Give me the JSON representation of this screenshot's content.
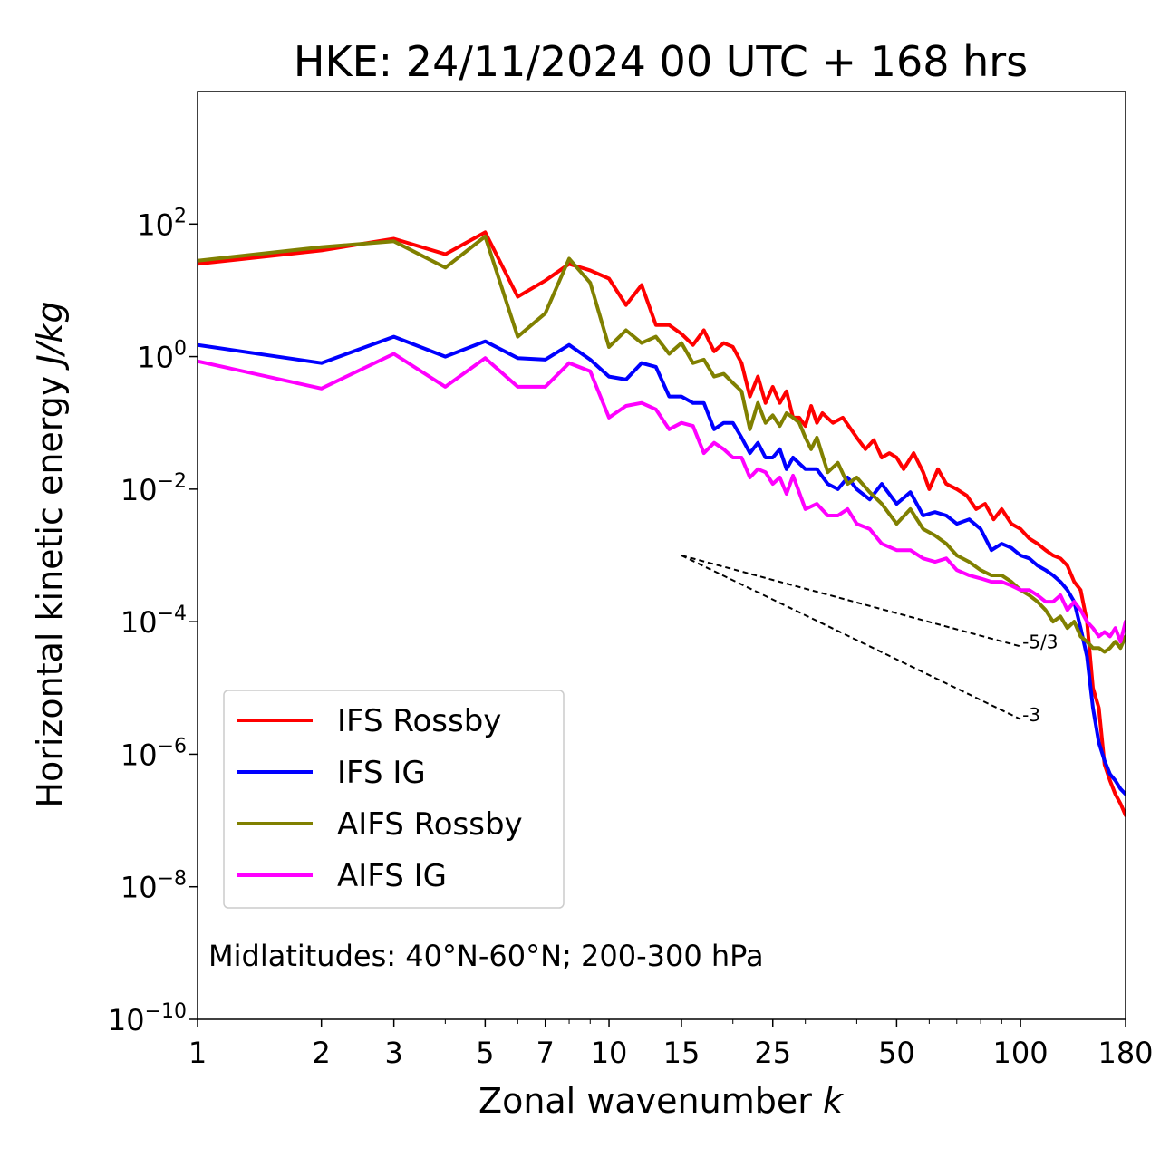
{
  "chart_data": {
    "type": "line",
    "title": "HKE: 24/11/2024 00 UTC + 168 hrs",
    "xlabel": "Zonal wavenumber",
    "xlabel_var": "k",
    "ylabel": "Horizontal kinetic energy",
    "ylabel_unit": "J/kg",
    "x_scale": "log",
    "y_scale": "log",
    "xlim": [
      1,
      180
    ],
    "ylim": [
      1e-10,
      10000.0
    ],
    "x_ticks": [
      1,
      2,
      3,
      5,
      7,
      10,
      15,
      25,
      50,
      100,
      180
    ],
    "y_ticks": [
      {
        "base": "10",
        "exp": "2",
        "value": 100
      },
      {
        "base": "10",
        "exp": "0",
        "value": 1
      },
      {
        "base": "10",
        "exp": "−2",
        "value": 0.01
      },
      {
        "base": "10",
        "exp": "−4",
        "value": 0.0001
      },
      {
        "base": "10",
        "exp": "−6",
        "value": 1e-06
      },
      {
        "base": "10",
        "exp": "−8",
        "value": 1e-08
      },
      {
        "base": "10",
        "exp": "−10",
        "value": 1e-10
      }
    ],
    "grid": false,
    "legend_position": "lower-left",
    "annotation": "Midlatitudes: 40°N-60°N; 200-300 hPa",
    "reference_lines": [
      {
        "label": "-5/3",
        "slope": -1.6667,
        "x_start": 15,
        "x_end": 100,
        "y_start": 0.001
      },
      {
        "label": "-3",
        "slope": -3,
        "x_start": 15,
        "x_end": 100,
        "y_start": 0.001
      }
    ],
    "series": [
      {
        "name": "IFS Rossby",
        "color": "#ff0000",
        "points": [
          [
            1,
            25
          ],
          [
            2,
            40
          ],
          [
            3,
            60
          ],
          [
            4,
            35
          ],
          [
            5,
            75
          ],
          [
            6,
            8
          ],
          [
            7,
            14
          ],
          [
            8,
            25
          ],
          [
            9,
            20
          ],
          [
            10,
            15
          ],
          [
            11,
            6
          ],
          [
            12,
            12
          ],
          [
            13,
            3
          ],
          [
            14,
            3
          ],
          [
            15,
            2.2
          ],
          [
            16,
            1.5
          ],
          [
            17,
            2.5
          ],
          [
            18,
            1.2
          ],
          [
            19,
            1.6
          ],
          [
            20,
            1.4
          ],
          [
            21,
            0.8
          ],
          [
            22,
            0.25
          ],
          [
            23,
            0.5
          ],
          [
            24,
            0.2
          ],
          [
            25,
            0.35
          ],
          [
            26,
            0.2
          ],
          [
            27,
            0.3
          ],
          [
            28,
            0.12
          ],
          [
            29,
            0.12
          ],
          [
            30,
            0.09
          ],
          [
            31,
            0.18
          ],
          [
            32,
            0.1
          ],
          [
            33,
            0.14
          ],
          [
            35,
            0.1
          ],
          [
            37,
            0.12
          ],
          [
            40,
            0.06
          ],
          [
            42,
            0.04
          ],
          [
            44,
            0.055
          ],
          [
            46,
            0.03
          ],
          [
            48,
            0.035
          ],
          [
            50,
            0.03
          ],
          [
            52,
            0.02
          ],
          [
            55,
            0.035
          ],
          [
            58,
            0.018
          ],
          [
            60,
            0.01
          ],
          [
            63,
            0.02
          ],
          [
            66,
            0.012
          ],
          [
            70,
            0.01
          ],
          [
            74,
            0.008
          ],
          [
            78,
            0.005
          ],
          [
            82,
            0.006
          ],
          [
            86,
            0.0035
          ],
          [
            90,
            0.005
          ],
          [
            95,
            0.003
          ],
          [
            100,
            0.0025
          ],
          [
            105,
            0.0018
          ],
          [
            110,
            0.0015
          ],
          [
            115,
            0.0012
          ],
          [
            120,
            0.001
          ],
          [
            125,
            0.0009
          ],
          [
            130,
            0.0007
          ],
          [
            135,
            0.0004
          ],
          [
            140,
            0.0003
          ],
          [
            145,
            0.0001
          ],
          [
            150,
            1e-05
          ],
          [
            155,
            5e-06
          ],
          [
            160,
            7e-07
          ],
          [
            165,
            4e-07
          ],
          [
            170,
            2.5e-07
          ],
          [
            175,
            1.8e-07
          ],
          [
            180,
            1.2e-07
          ]
        ]
      },
      {
        "name": "IFS IG",
        "color": "#0000ff",
        "points": [
          [
            1,
            1.5
          ],
          [
            2,
            0.8
          ],
          [
            3,
            2
          ],
          [
            4,
            1
          ],
          [
            5,
            1.7
          ],
          [
            6,
            0.95
          ],
          [
            7,
            0.9
          ],
          [
            8,
            1.5
          ],
          [
            9,
            0.9
          ],
          [
            10,
            0.5
          ],
          [
            11,
            0.45
          ],
          [
            12,
            0.8
          ],
          [
            13,
            0.7
          ],
          [
            14,
            0.25
          ],
          [
            15,
            0.25
          ],
          [
            16,
            0.2
          ],
          [
            17,
            0.2
          ],
          [
            18,
            0.08
          ],
          [
            19,
            0.1
          ],
          [
            20,
            0.1
          ],
          [
            21,
            0.06
          ],
          [
            22,
            0.035
          ],
          [
            23,
            0.05
          ],
          [
            24,
            0.03
          ],
          [
            25,
            0.03
          ],
          [
            26,
            0.04
          ],
          [
            27,
            0.02
          ],
          [
            28,
            0.03
          ],
          [
            30,
            0.02
          ],
          [
            32,
            0.02
          ],
          [
            34,
            0.012
          ],
          [
            36,
            0.01
          ],
          [
            38,
            0.015
          ],
          [
            40,
            0.01
          ],
          [
            43,
            0.007
          ],
          [
            46,
            0.012
          ],
          [
            50,
            0.006
          ],
          [
            54,
            0.009
          ],
          [
            58,
            0.004
          ],
          [
            62,
            0.0045
          ],
          [
            66,
            0.004
          ],
          [
            70,
            0.003
          ],
          [
            75,
            0.0035
          ],
          [
            80,
            0.0025
          ],
          [
            85,
            0.0012
          ],
          [
            90,
            0.0015
          ],
          [
            95,
            0.0013
          ],
          [
            100,
            0.001
          ],
          [
            105,
            0.0009
          ],
          [
            110,
            0.0007
          ],
          [
            115,
            0.0006
          ],
          [
            120,
            0.0005
          ],
          [
            125,
            0.0004
          ],
          [
            130,
            0.0003
          ],
          [
            135,
            0.0002
          ],
          [
            140,
            8e-05
          ],
          [
            145,
            3e-05
          ],
          [
            150,
            5e-06
          ],
          [
            155,
            1.5e-06
          ],
          [
            160,
            8e-07
          ],
          [
            165,
            5e-07
          ],
          [
            170,
            4e-07
          ],
          [
            175,
            3e-07
          ],
          [
            180,
            2.5e-07
          ]
        ]
      },
      {
        "name": "AIFS Rossby",
        "color": "#808000",
        "points": [
          [
            1,
            28
          ],
          [
            2,
            45
          ],
          [
            3,
            55
          ],
          [
            4,
            22
          ],
          [
            5,
            65
          ],
          [
            6,
            2
          ],
          [
            7,
            4.5
          ],
          [
            8,
            30
          ],
          [
            9,
            13
          ],
          [
            10,
            1.4
          ],
          [
            11,
            2.5
          ],
          [
            12,
            1.6
          ],
          [
            13,
            2
          ],
          [
            14,
            1.1
          ],
          [
            15,
            1.6
          ],
          [
            16,
            0.8
          ],
          [
            17,
            0.9
          ],
          [
            18,
            0.5
          ],
          [
            19,
            0.55
          ],
          [
            20,
            0.4
          ],
          [
            21,
            0.3
          ],
          [
            22,
            0.08
          ],
          [
            23,
            0.2
          ],
          [
            24,
            0.1
          ],
          [
            25,
            0.13
          ],
          [
            26,
            0.09
          ],
          [
            27,
            0.14
          ],
          [
            28,
            0.12
          ],
          [
            29,
            0.1
          ],
          [
            30,
            0.06
          ],
          [
            31,
            0.04
          ],
          [
            32,
            0.06
          ],
          [
            34,
            0.018
          ],
          [
            36,
            0.025
          ],
          [
            38,
            0.012
          ],
          [
            40,
            0.015
          ],
          [
            43,
            0.009
          ],
          [
            46,
            0.006
          ],
          [
            50,
            0.003
          ],
          [
            54,
            0.005
          ],
          [
            58,
            0.0025
          ],
          [
            62,
            0.002
          ],
          [
            66,
            0.0015
          ],
          [
            70,
            0.001
          ],
          [
            75,
            0.0008
          ],
          [
            80,
            0.0006
          ],
          [
            85,
            0.0005
          ],
          [
            90,
            0.0005
          ],
          [
            95,
            0.0004
          ],
          [
            100,
            0.0003
          ],
          [
            105,
            0.00025
          ],
          [
            110,
            0.0002
          ],
          [
            115,
            0.00015
          ],
          [
            120,
            0.0001
          ],
          [
            125,
            0.00012
          ],
          [
            130,
            8e-05
          ],
          [
            135,
            0.0001
          ],
          [
            140,
            6e-05
          ],
          [
            145,
            5e-05
          ],
          [
            150,
            4e-05
          ],
          [
            155,
            4e-05
          ],
          [
            160,
            3.5e-05
          ],
          [
            165,
            4e-05
          ],
          [
            170,
            5e-05
          ],
          [
            175,
            4e-05
          ],
          [
            180,
            6e-05
          ]
        ]
      },
      {
        "name": "AIFS IG",
        "color": "#ff00ff",
        "points": [
          [
            1,
            0.85
          ],
          [
            2,
            0.33
          ],
          [
            3,
            1.1
          ],
          [
            4,
            0.35
          ],
          [
            5,
            0.95
          ],
          [
            6,
            0.35
          ],
          [
            7,
            0.35
          ],
          [
            8,
            0.8
          ],
          [
            9,
            0.6
          ],
          [
            10,
            0.12
          ],
          [
            11,
            0.18
          ],
          [
            12,
            0.2
          ],
          [
            13,
            0.16
          ],
          [
            14,
            0.08
          ],
          [
            15,
            0.1
          ],
          [
            16,
            0.09
          ],
          [
            17,
            0.035
          ],
          [
            18,
            0.05
          ],
          [
            19,
            0.04
          ],
          [
            20,
            0.03
          ],
          [
            21,
            0.03
          ],
          [
            22,
            0.015
          ],
          [
            23,
            0.02
          ],
          [
            24,
            0.018
          ],
          [
            25,
            0.012
          ],
          [
            26,
            0.015
          ],
          [
            27,
            0.0085
          ],
          [
            28,
            0.016
          ],
          [
            30,
            0.005
          ],
          [
            32,
            0.006
          ],
          [
            34,
            0.004
          ],
          [
            36,
            0.004
          ],
          [
            38,
            0.005
          ],
          [
            40,
            0.003
          ],
          [
            43,
            0.0025
          ],
          [
            46,
            0.0015
          ],
          [
            50,
            0.0012
          ],
          [
            54,
            0.0012
          ],
          [
            58,
            0.0009
          ],
          [
            62,
            0.0008
          ],
          [
            66,
            0.0009
          ],
          [
            70,
            0.0006
          ],
          [
            75,
            0.0005
          ],
          [
            80,
            0.00045
          ],
          [
            85,
            0.0004
          ],
          [
            90,
            0.0004
          ],
          [
            95,
            0.00035
          ],
          [
            100,
            0.0003
          ],
          [
            105,
            0.0003
          ],
          [
            110,
            0.00025
          ],
          [
            115,
            0.0002
          ],
          [
            120,
            0.0002
          ],
          [
            125,
            0.00025
          ],
          [
            130,
            0.00015
          ],
          [
            135,
            0.0002
          ],
          [
            140,
            0.00015
          ],
          [
            145,
            0.0001
          ],
          [
            150,
            8e-05
          ],
          [
            155,
            6e-05
          ],
          [
            160,
            7e-05
          ],
          [
            165,
            6e-05
          ],
          [
            170,
            8e-05
          ],
          [
            175,
            5e-05
          ],
          [
            180,
            0.0001
          ]
        ]
      }
    ]
  }
}
